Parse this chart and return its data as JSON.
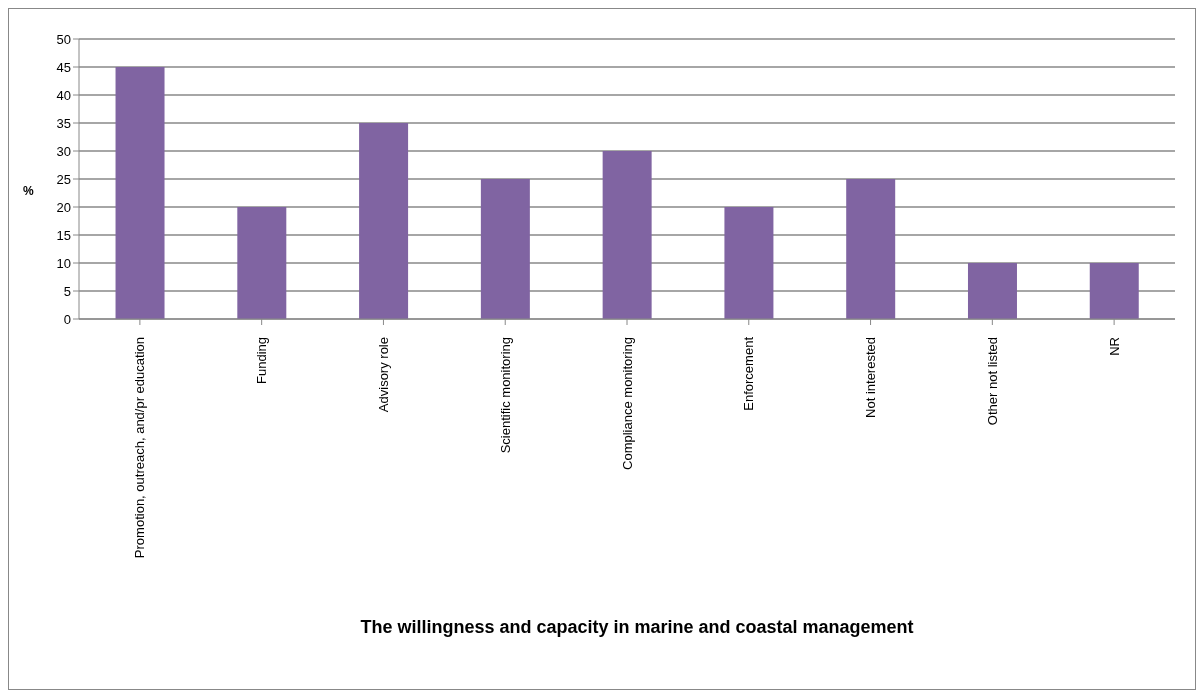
{
  "chart_data": {
    "type": "bar",
    "categories": [
      "Promotion, outreach, and/pr education",
      "Funding",
      "Advisory role",
      "Scientific monitoring",
      "Compliance monitoring",
      "Enforcement",
      "Not interested",
      "Other not listed",
      "NR"
    ],
    "values": [
      45,
      20,
      35,
      25,
      30,
      20,
      25,
      10,
      10
    ],
    "color": "#8064a2",
    "xlabel": "The willingness and capacity in marine and coastal management",
    "ylabel": "%",
    "ylim": [
      0,
      50
    ],
    "yticks": [
      0,
      5,
      10,
      15,
      20,
      25,
      30,
      35,
      40,
      45,
      50
    ],
    "grid": "y"
  }
}
